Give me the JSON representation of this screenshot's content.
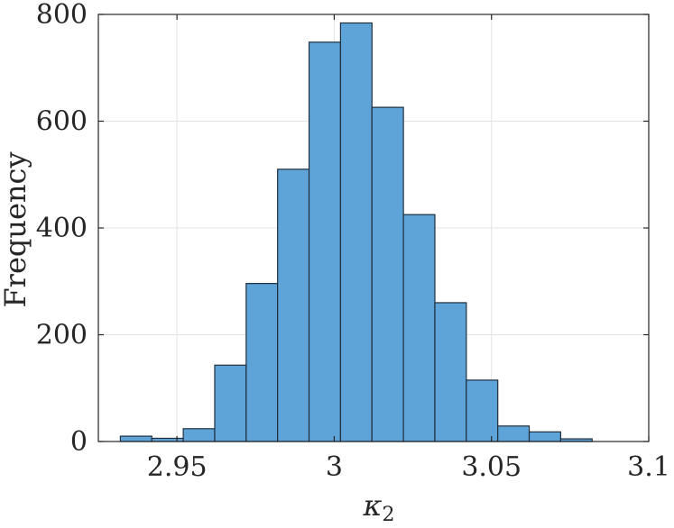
{
  "chart_data": {
    "type": "bar",
    "title": "",
    "xlabel": "κ",
    "xlabel_subscript": "2",
    "ylabel": "Frequency",
    "xlim": [
      2.925,
      3.1
    ],
    "ylim": [
      0,
      800
    ],
    "xticks": [
      2.95,
      3,
      3.05,
      3.1
    ],
    "xtick_labels": [
      "2.95",
      "3",
      "3.05",
      "3.1"
    ],
    "yticks": [
      0,
      200,
      400,
      600,
      800
    ],
    "ytick_labels": [
      "0",
      "200",
      "400",
      "600",
      "800"
    ],
    "grid": true,
    "bin_edges": [
      2.932,
      2.942,
      2.952,
      2.962,
      2.972,
      2.982,
      2.992,
      3.002,
      3.012,
      3.022,
      3.032,
      3.042,
      3.052,
      3.062,
      3.072,
      3.082,
      3.092
    ],
    "values": [
      10,
      6,
      24,
      143,
      296,
      510,
      748,
      784,
      626,
      425,
      260,
      115,
      29,
      18,
      5,
      0
    ],
    "colors": {
      "bar_fill": "#5fa4d8",
      "bar_edge": "#1f2f3d",
      "axis": "#262626",
      "grid": "#e3e3e3"
    }
  }
}
